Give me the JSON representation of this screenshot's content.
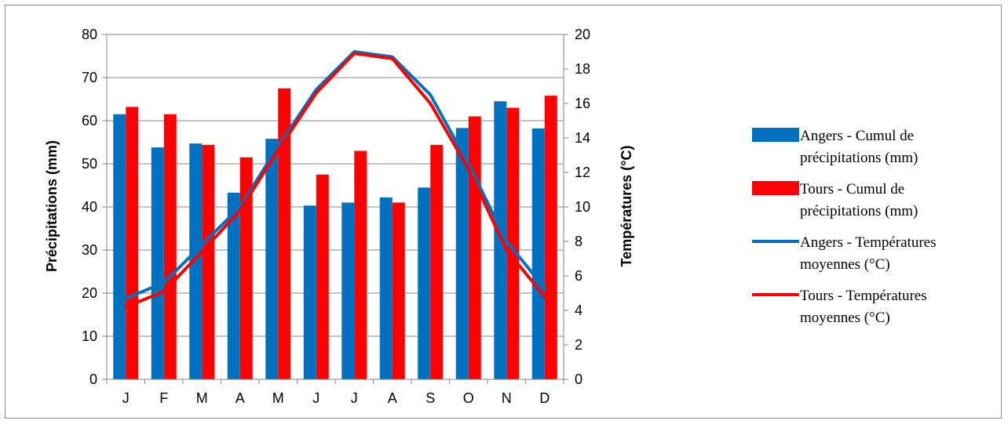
{
  "chart_data": {
    "type": "bar",
    "categories": [
      "J",
      "F",
      "M",
      "A",
      "M",
      "J",
      "J",
      "A",
      "S",
      "O",
      "N",
      "D"
    ],
    "series": [
      {
        "name": "Angers - Cumul de précipitations (mm)",
        "type": "bar",
        "axis": "left",
        "color": "#0070C0",
        "values": [
          61.5,
          53.8,
          54.7,
          43.3,
          55.8,
          40.3,
          41.0,
          42.2,
          44.5,
          58.3,
          64.5,
          58.2
        ]
      },
      {
        "name": "Tours - Cumul de précipitations (mm)",
        "type": "bar",
        "axis": "left",
        "color": "#FF0000",
        "values": [
          63.2,
          61.5,
          54.4,
          51.5,
          67.5,
          47.5,
          53.0,
          41.0,
          54.4,
          61.0,
          63.0,
          65.8
        ]
      },
      {
        "name": "Angers - Températures moyennes (°C)",
        "type": "line",
        "axis": "right",
        "color": "#0070C0",
        "values": [
          4.7,
          5.6,
          7.8,
          10.0,
          13.5,
          16.8,
          19.0,
          18.7,
          16.5,
          12.5,
          8.0,
          5.3
        ]
      },
      {
        "name": "Tours - Températures moyennes (°C)",
        "type": "line",
        "axis": "right",
        "color": "#FF0000",
        "values": [
          4.2,
          5.1,
          7.4,
          9.8,
          13.3,
          16.6,
          18.9,
          18.6,
          16.0,
          12.2,
          7.5,
          4.8
        ]
      }
    ],
    "y_left": {
      "label": "Précipitations (mm)",
      "range": [
        0,
        80
      ],
      "ticks": [
        "0",
        "10",
        "20",
        "30",
        "40",
        "50",
        "60",
        "70",
        "80"
      ]
    },
    "y_right": {
      "label": "Températures (°C)",
      "range": [
        0,
        20
      ],
      "ticks": [
        "0",
        "2",
        "4",
        "6",
        "8",
        "10",
        "12",
        "14",
        "16",
        "18",
        "20"
      ]
    },
    "grid": "horizontal",
    "legend_position": "right",
    "legend": [
      {
        "lines": [
          "Angers - Cumul de",
          "précipitations (mm)"
        ]
      },
      {
        "lines": [
          "Tours - Cumul de",
          "précipitations (mm)"
        ]
      },
      {
        "lines": [
          "Angers - Températures",
          "moyennes (°C)"
        ]
      },
      {
        "lines": [
          "Tours - Températures",
          "moyennes (°C)"
        ]
      }
    ]
  }
}
